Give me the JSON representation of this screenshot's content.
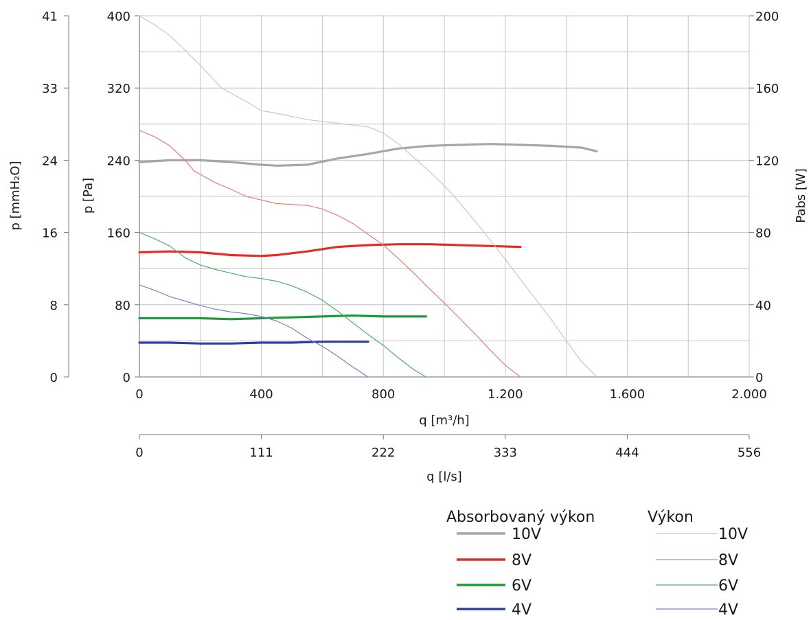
{
  "chart_data": {
    "type": "line",
    "x_axis": {
      "label": "q [m³/h]",
      "range": [
        0,
        2000
      ],
      "ticks": [
        "0",
        "400",
        "800",
        "1.200",
        "1.600",
        "2.000"
      ]
    },
    "x2_axis": {
      "label": "q [l/s]",
      "range": [
        0,
        556
      ],
      "ticks": [
        "0",
        "111",
        "222",
        "333",
        "444",
        "556"
      ]
    },
    "y_axis": {
      "label": "p [Pa]",
      "range": [
        0,
        400
      ],
      "ticks": [
        "0",
        "80",
        "160",
        "240",
        "320",
        "400"
      ]
    },
    "y_axis_outer": {
      "label": "p [mmH₂O]",
      "ticks": [
        "0",
        "8",
        "16",
        "24",
        "33",
        "41"
      ]
    },
    "y2_axis": {
      "label": "Pabs [W]",
      "range": [
        0,
        200
      ],
      "ticks": [
        "0",
        "40",
        "80",
        "120",
        "160",
        "200"
      ]
    },
    "grid": true,
    "legend": {
      "groups": [
        {
          "title": "Absorbovaný výkon",
          "entries": [
            "10V",
            "8V",
            "6V",
            "4V"
          ]
        },
        {
          "title": "Výkon",
          "entries": [
            "10V",
            "8V",
            "6V",
            "4V"
          ]
        }
      ],
      "placement": "bottom-right"
    },
    "series": [
      {
        "name": "10V",
        "group": "Absorbovaný výkon",
        "axis": "y2",
        "color": "#a6a6a6",
        "x": [
          0,
          100,
          200,
          300,
          400,
          450,
          550,
          650,
          750,
          850,
          950,
          1050,
          1150,
          1250,
          1350,
          1450,
          1500
        ],
        "y": [
          119,
          120,
          120,
          119,
          117.5,
          117,
          117.5,
          121,
          123.5,
          126.5,
          128,
          128.5,
          129,
          128.5,
          128,
          127,
          125
        ]
      },
      {
        "name": "8V",
        "group": "Absorbovaný výkon",
        "axis": "y2",
        "color": "#e52d27",
        "x": [
          0,
          100,
          200,
          300,
          400,
          450,
          550,
          650,
          750,
          850,
          950,
          1050,
          1150,
          1250
        ],
        "y": [
          69,
          69.5,
          69,
          67.5,
          67,
          67.5,
          69.5,
          72,
          73,
          73.5,
          73.5,
          73,
          72.5,
          72
        ]
      },
      {
        "name": "6V",
        "group": "Absorbovaný výkon",
        "axis": "y2",
        "color": "#1e9a3c",
        "x": [
          0,
          100,
          200,
          300,
          400,
          500,
          600,
          700,
          800,
          940
        ],
        "y": [
          32.5,
          32.5,
          32.5,
          32,
          32.5,
          33,
          33.5,
          34,
          33.5,
          33.5
        ]
      },
      {
        "name": "4V",
        "group": "Absorbovaný výkon",
        "axis": "y2",
        "color": "#2c3f9c",
        "x": [
          0,
          100,
          200,
          300,
          400,
          500,
          600,
          700,
          750
        ],
        "y": [
          19,
          19,
          18.5,
          18.5,
          19,
          19,
          19.5,
          19.5,
          19.5
        ]
      },
      {
        "name": "10V",
        "group": "Výkon",
        "axis": "y",
        "color": "#c8c8c8",
        "x": [
          0,
          50,
          100,
          150,
          200,
          270,
          350,
          400,
          450,
          550,
          650,
          750,
          800,
          850,
          900,
          950,
          1000,
          1050,
          1100,
          1150,
          1200,
          1250,
          1300,
          1350,
          1400,
          1450,
          1500
        ],
        "y": [
          400,
          390,
          378,
          362,
          345,
          320,
          305,
          295,
          292,
          285,
          281,
          277,
          270,
          258,
          243,
          228,
          212,
          193,
          173,
          152,
          130,
          108,
          86,
          64,
          40,
          17,
          0
        ]
      },
      {
        "name": "8V",
        "group": "Výkon",
        "axis": "y",
        "color": "#f07a74",
        "x": [
          0,
          50,
          100,
          150,
          180,
          250,
          300,
          350,
          400,
          450,
          550,
          600,
          650,
          700,
          750,
          800,
          850,
          900,
          950,
          1000,
          1050,
          1100,
          1150,
          1200,
          1250
        ],
        "y": [
          273,
          266,
          256,
          240,
          228,
          215,
          208,
          200,
          196,
          192,
          190,
          186,
          179,
          170,
          158,
          146,
          131,
          115,
          98,
          82,
          65,
          48,
          30,
          13,
          0
        ]
      },
      {
        "name": "6V",
        "group": "Výkon",
        "axis": "y",
        "color": "#4fae6a",
        "x": [
          0,
          50,
          100,
          150,
          200,
          250,
          300,
          350,
          400,
          450,
          500,
          550,
          600,
          650,
          700,
          750,
          800,
          850,
          900,
          940
        ],
        "y": [
          160,
          153,
          145,
          132,
          124,
          119,
          115,
          111,
          109,
          106,
          101,
          94,
          85,
          73,
          60,
          47,
          35,
          21,
          8,
          0
        ]
      },
      {
        "name": "4V",
        "group": "Výkon",
        "axis": "y",
        "color": "#7a7fc8",
        "x": [
          0,
          50,
          100,
          150,
          200,
          250,
          300,
          350,
          400,
          450,
          500,
          550,
          600,
          650,
          700,
          750
        ],
        "y": [
          102,
          96,
          89,
          84,
          79,
          75,
          72,
          70,
          67,
          62,
          54,
          43,
          34,
          23,
          11,
          0
        ]
      }
    ]
  }
}
